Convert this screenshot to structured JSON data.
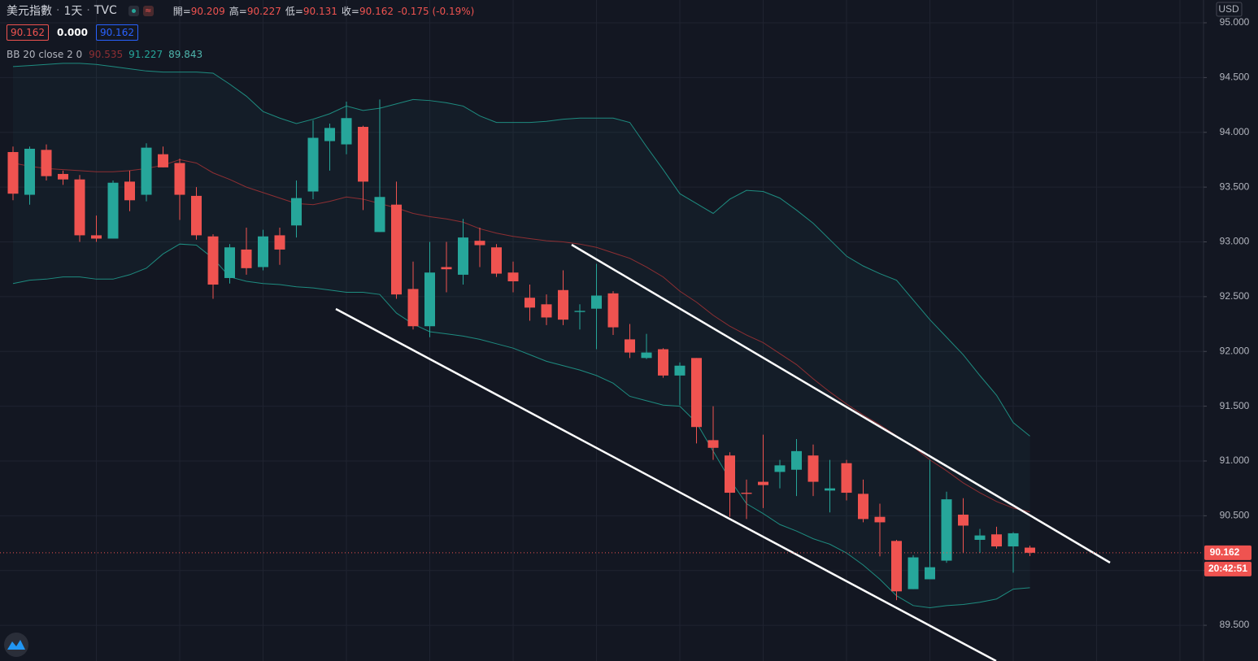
{
  "chart_data": {
    "type": "candlestick",
    "title": "美元指數",
    "interval": "1天",
    "source": "TVC",
    "currency": "USD",
    "ohlc_legend": [
      {
        "label": "開=",
        "value": "90.209"
      },
      {
        "label": "高=",
        "value": "90.227"
      },
      {
        "label": "低=",
        "value": "90.131"
      },
      {
        "label": "收=",
        "value": "90.162"
      }
    ],
    "change": "-0.175 (-0.19%)",
    "price_boxes": [
      "90.162",
      "0.000",
      "90.162"
    ],
    "indicator": {
      "name": "BB 20 close 2 0",
      "values": [
        "90.535",
        "91.227",
        "89.843"
      ]
    },
    "last_price_label": "90.162",
    "countdown": "20:42:51",
    "up_color": "#26a69a",
    "down_color": "#ef5350",
    "ylim": [
      89.174,
      95.208
    ],
    "yticks": [
      {
        "value": 95,
        "label": "95.000"
      },
      {
        "value": 94.5,
        "label": "94.500"
      },
      {
        "value": 94,
        "label": "94.000"
      },
      {
        "value": 93.5,
        "label": "93.500"
      },
      {
        "value": 93,
        "label": "93.000"
      },
      {
        "value": 92.5,
        "label": "92.500"
      },
      {
        "value": 92,
        "label": "92.000"
      },
      {
        "value": 91.5,
        "label": "91.500"
      },
      {
        "value": 91,
        "label": "91.000"
      },
      {
        "value": 90.5,
        "label": "90.500"
      },
      {
        "value": 90,
        "label": "90.000"
      },
      {
        "value": 89.5,
        "label": "89.500"
      }
    ],
    "grid": true,
    "categories": [
      null,
      null,
      null,
      null,
      null,
      null,
      null,
      null,
      null,
      null,
      null,
      null,
      null,
      null,
      null,
      null,
      null,
      null,
      null,
      null,
      null,
      null,
      null,
      null,
      null,
      null,
      null,
      null,
      null,
      null,
      null,
      null,
      null,
      null,
      null,
      null,
      null,
      null,
      null,
      null,
      null,
      null,
      null,
      null,
      null,
      null,
      null,
      null,
      null,
      null,
      null,
      null,
      null,
      null,
      null,
      null,
      null,
      null,
      null,
      null,
      null,
      null
    ],
    "open": [
      93.82,
      93.43,
      93.84,
      93.62,
      93.57,
      93.06,
      93.03,
      93.55,
      93.43,
      93.8,
      93.72,
      93.42,
      93.05,
      92.67,
      92.93,
      92.77,
      93.06,
      93.15,
      93.46,
      93.92,
      93.89,
      94.05,
      93.09,
      93.34,
      92.57,
      92.23,
      92.77,
      92.7,
      93.01,
      92.95,
      92.72,
      92.49,
      92.43,
      92.56,
      92.36,
      92.39,
      92.53,
      92.11,
      91.94,
      92.02,
      91.78,
      91.94,
      91.19,
      91.05,
      90.71,
      90.81,
      90.9,
      90.92,
      91.05,
      90.73,
      90.98,
      90.7,
      90.49,
      90.27,
      89.83,
      89.92,
      90.09,
      90.51,
      90.28,
      90.33,
      90.22,
      90.209
    ],
    "high": [
      93.87,
      93.87,
      93.89,
      93.65,
      93.61,
      93.24,
      93.56,
      93.65,
      93.9,
      93.87,
      93.76,
      93.5,
      93.07,
      92.98,
      93.13,
      93.11,
      93.13,
      93.56,
      94.11,
      94.08,
      94.28,
      94.06,
      94.3,
      93.55,
      92.82,
      93.0,
      93.0,
      93.21,
      93.13,
      92.98,
      92.82,
      92.61,
      92.52,
      92.74,
      92.43,
      92.8,
      92.55,
      92.25,
      92.16,
      92.03,
      91.9,
      91.94,
      91.5,
      91.08,
      90.83,
      91.24,
      91.01,
      91.2,
      91.15,
      91.01,
      91.01,
      90.83,
      90.61,
      90.28,
      90.14,
      91.01,
      90.72,
      90.66,
      90.38,
      90.4,
      90.35,
      90.227
    ],
    "low": [
      93.38,
      93.34,
      93.56,
      93.52,
      93.0,
      93.0,
      93.03,
      93.28,
      93.37,
      93.68,
      93.2,
      93.02,
      92.48,
      92.62,
      92.7,
      92.74,
      92.79,
      93.04,
      93.39,
      93.65,
      93.8,
      93.29,
      93.09,
      92.48,
      92.2,
      92.13,
      92.54,
      92.61,
      92.77,
      92.68,
      92.54,
      92.28,
      92.24,
      92.24,
      92.2,
      92.02,
      92.15,
      91.94,
      91.93,
      91.76,
      91.51,
      91.16,
      91.01,
      90.49,
      90.47,
      90.57,
      90.75,
      90.68,
      90.68,
      90.53,
      90.64,
      90.44,
      90.13,
      89.73,
      89.83,
      89.92,
      90.07,
      90.16,
      90.16,
      90.2,
      89.98,
      90.131
    ],
    "close": [
      93.44,
      93.85,
      93.6,
      93.57,
      93.06,
      93.03,
      93.54,
      93.38,
      93.86,
      93.68,
      93.43,
      93.06,
      92.61,
      92.95,
      92.76,
      93.05,
      92.93,
      93.4,
      93.95,
      94.04,
      94.13,
      93.55,
      93.41,
      92.52,
      92.23,
      92.72,
      92.75,
      93.04,
      92.97,
      92.71,
      92.64,
      92.4,
      92.31,
      92.29,
      92.37,
      92.51,
      92.22,
      91.99,
      91.99,
      91.78,
      91.87,
      91.31,
      91.12,
      90.71,
      90.7,
      90.78,
      90.96,
      91.09,
      90.81,
      90.75,
      90.71,
      90.47,
      90.44,
      89.81,
      90.12,
      90.03,
      90.65,
      90.41,
      90.32,
      90.22,
      90.34,
      90.162
    ],
    "bands": {
      "upper_color": "#1e8c80",
      "middle_color": "#8e2f33",
      "lower_color": "#1e8c80",
      "fill": "rgba(38,166,154,0.05)",
      "upper": [
        94.6,
        94.61,
        94.62,
        94.63,
        94.63,
        94.62,
        94.6,
        94.58,
        94.56,
        94.55,
        94.55,
        94.55,
        94.54,
        94.44,
        94.33,
        94.19,
        94.13,
        94.08,
        94.12,
        94.17,
        94.24,
        94.2,
        94.22,
        94.26,
        94.3,
        94.29,
        94.27,
        94.24,
        94.15,
        94.09,
        94.09,
        94.09,
        94.1,
        94.12,
        94.13,
        94.13,
        94.13,
        94.09,
        93.87,
        93.66,
        93.44,
        93.35,
        93.26,
        93.39,
        93.47,
        93.46,
        93.4,
        93.29,
        93.17,
        93.02,
        92.87,
        92.78,
        92.71,
        92.65,
        92.47,
        92.29,
        92.13,
        91.97,
        91.78,
        91.6,
        91.35,
        91.227
      ],
      "middle": [
        93.72,
        93.69,
        93.67,
        93.66,
        93.65,
        93.64,
        93.64,
        93.65,
        93.67,
        93.7,
        93.75,
        93.72,
        93.63,
        93.57,
        93.5,
        93.45,
        93.4,
        93.35,
        93.34,
        93.37,
        93.41,
        93.39,
        93.35,
        93.31,
        93.26,
        93.23,
        93.21,
        93.18,
        93.12,
        93.08,
        93.05,
        93.03,
        93.01,
        93.0,
        92.98,
        92.95,
        92.9,
        92.85,
        92.77,
        92.68,
        92.55,
        92.45,
        92.33,
        92.23,
        92.15,
        92.08,
        91.98,
        91.88,
        91.75,
        91.63,
        91.52,
        91.42,
        91.33,
        91.23,
        91.13,
        91.01,
        90.91,
        90.8,
        90.71,
        90.63,
        90.57,
        90.535
      ],
      "lower": [
        92.62,
        92.65,
        92.66,
        92.68,
        92.68,
        92.66,
        92.66,
        92.7,
        92.76,
        92.89,
        92.98,
        92.97,
        92.85,
        92.68,
        92.64,
        92.62,
        92.61,
        92.59,
        92.58,
        92.56,
        92.54,
        92.54,
        92.52,
        92.35,
        92.25,
        92.18,
        92.16,
        92.14,
        92.11,
        92.07,
        92.03,
        91.97,
        91.91,
        91.87,
        91.83,
        91.78,
        91.71,
        91.59,
        91.55,
        91.51,
        91.5,
        91.35,
        91.09,
        90.83,
        90.61,
        90.52,
        90.42,
        90.36,
        90.29,
        90.24,
        90.16,
        90.05,
        89.92,
        89.77,
        89.68,
        89.66,
        89.68,
        89.69,
        89.71,
        89.74,
        89.83,
        89.843
      ]
    }
  }
}
